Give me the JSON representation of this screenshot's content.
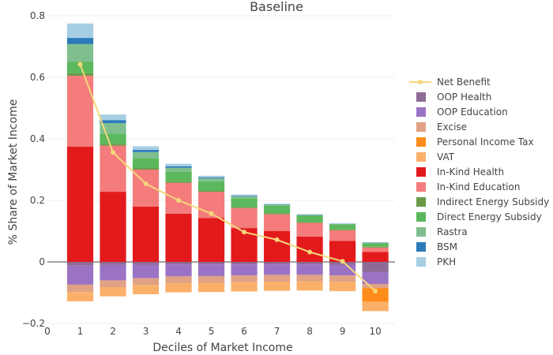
{
  "chart_data": {
    "type": "bar",
    "stacked": true,
    "title": "Baseline",
    "xlabel": "Deciles of Market Income",
    "ylabel": "% Share of Market Income",
    "xlim": [
      0,
      10.6
    ],
    "ylim": [
      -0.2,
      0.8
    ],
    "x_ticks": [
      0,
      1,
      2,
      3,
      4,
      5,
      6,
      7,
      8,
      9,
      10
    ],
    "y_ticks": [
      -0.2,
      0,
      0.2,
      0.4,
      0.6,
      0.8
    ],
    "y_tick_labels": [
      "−0.2",
      "0",
      "0.2",
      "0.4",
      "0.6",
      "0.8"
    ],
    "grid": true,
    "legend_position": "right",
    "categories": [
      1,
      2,
      3,
      4,
      5,
      6,
      7,
      8,
      9,
      10
    ],
    "line_series": {
      "name": "Net Benefit",
      "color": "#f4d77a",
      "values": [
        0.642,
        0.356,
        0.254,
        0.2,
        0.157,
        0.097,
        0.072,
        0.032,
        0.002,
        -0.095
      ]
    },
    "series": [
      {
        "name": "OOP Health",
        "color": "#8d6b94",
        "values": [
          -0.012,
          -0.01,
          -0.009,
          -0.008,
          -0.008,
          -0.008,
          -0.008,
          -0.008,
          -0.009,
          -0.032
        ]
      },
      {
        "name": "OOP Education",
        "color": "#9b73c4",
        "values": [
          -0.062,
          -0.05,
          -0.044,
          -0.039,
          -0.038,
          -0.036,
          -0.034,
          -0.034,
          -0.035,
          -0.04
        ]
      },
      {
        "name": "Excise",
        "color": "#e0a184",
        "values": [
          -0.024,
          -0.022,
          -0.022,
          -0.022,
          -0.022,
          -0.022,
          -0.022,
          -0.021,
          -0.021,
          -0.013
        ]
      },
      {
        "name": "Personal Income Tax",
        "color": "#ff8c1a",
        "values": [
          0,
          0,
          0,
          0,
          0,
          0,
          0,
          0,
          0,
          -0.045
        ]
      },
      {
        "name": "VAT",
        "color": "#fbb06a",
        "values": [
          -0.03,
          -0.03,
          -0.03,
          -0.03,
          -0.03,
          -0.03,
          -0.03,
          -0.03,
          -0.03,
          -0.03
        ]
      },
      {
        "name": "In-Kind Health",
        "color": "#e31a1c",
        "values": [
          0.375,
          0.228,
          0.18,
          0.157,
          0.143,
          0.11,
          0.1,
          0.082,
          0.068,
          0.032
        ]
      },
      {
        "name": "In-Kind Education",
        "color": "#f47c7c",
        "values": [
          0.23,
          0.15,
          0.12,
          0.1,
          0.085,
          0.065,
          0.055,
          0.045,
          0.035,
          0.015
        ]
      },
      {
        "name": "Indirect Energy Subsidy",
        "color": "#6a9a48",
        "values": [
          0.008,
          0.006,
          0.005,
          0.005,
          0.004,
          0.004,
          0.003,
          0.003,
          0.003,
          0.002
        ]
      },
      {
        "name": "Direct Energy Subsidy",
        "color": "#5cb85c",
        "values": [
          0.037,
          0.033,
          0.032,
          0.032,
          0.03,
          0.028,
          0.024,
          0.02,
          0.016,
          0.012
        ]
      },
      {
        "name": "Rastra",
        "color": "#7fbf8e",
        "values": [
          0.058,
          0.034,
          0.02,
          0.012,
          0.01,
          0.006,
          0.004,
          0.003,
          0.001,
          0.001
        ]
      },
      {
        "name": "BSM",
        "color": "#2b7bba",
        "values": [
          0.02,
          0.01,
          0.007,
          0.005,
          0.003,
          0.002,
          0.001,
          0.001,
          0.001,
          0.001
        ]
      },
      {
        "name": "PKH",
        "color": "#a6cee3",
        "values": [
          0.047,
          0.018,
          0.012,
          0.008,
          0.005,
          0.004,
          0.002,
          0.001,
          0.001,
          0.001
        ]
      }
    ]
  }
}
